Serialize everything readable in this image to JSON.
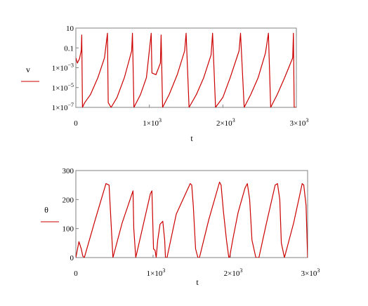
{
  "chart_data": [
    {
      "type": "line",
      "ylabel": "v",
      "xlabel": "t",
      "yscale": "log",
      "xlim": [
        0,
        3000
      ],
      "ylim": [
        1e-07,
        10
      ],
      "xticks": [
        {
          "value": 0,
          "base": "0",
          "exp": ""
        },
        {
          "value": 1000,
          "base": "1×10",
          "exp": "3"
        },
        {
          "value": 2000,
          "base": "2×10",
          "exp": "3"
        },
        {
          "value": 3000,
          "base": "3×10",
          "exp": "3"
        }
      ],
      "yticks": [
        {
          "value": 10,
          "base": "10",
          "exp": ""
        },
        {
          "value": 0.1,
          "base": "0.1",
          "exp": ""
        },
        {
          "value": 0.001,
          "base": "1×10",
          "exp": "−3"
        },
        {
          "value": 1e-05,
          "base": "1×10",
          "exp": "−5"
        },
        {
          "value": 1e-07,
          "base": "1×10",
          "exp": "−7"
        }
      ],
      "color": "#cc0000",
      "series": [
        {
          "x": [
            0,
            20,
            50,
            75,
            80,
            90,
            120,
            200,
            300,
            390,
            430,
            440,
            480,
            560,
            660,
            760,
            770,
            790,
            880,
            960,
            1025,
            1035,
            1090,
            1150,
            1160,
            1180,
            1270,
            1380,
            1480,
            1500,
            1540,
            1640,
            1740,
            1840,
            1860,
            1900,
            2000,
            2100,
            2220,
            2240,
            2290,
            2380,
            2480,
            2580,
            2620,
            2650,
            2740,
            2840,
            2950,
            2960,
            2970,
            3000
          ],
          "y": [
            0.01,
            0.003,
            0.008,
            0.06,
            2,
            1e-07,
            3e-07,
            2e-06,
            0.0001,
            0.01,
            3,
            3e-07,
            1e-07,
            1e-06,
            0.0001,
            0.05,
            3,
            1e-07,
            2e-06,
            0.0001,
            3,
            0.0003,
            0.0002,
            0.003,
            2,
            1e-07,
            2e-06,
            0.0002,
            0.05,
            3,
            1e-07,
            2e-06,
            0.0001,
            0.02,
            3,
            1e-07,
            1e-06,
            0.0001,
            0.05,
            3,
            1e-07,
            2e-06,
            0.0001,
            0.03,
            3,
            1e-07,
            2e-06,
            0.0001,
            0.01,
            3,
            1e-07,
            1e-07
          ]
        }
      ]
    },
    {
      "type": "line",
      "ylabel": "θ",
      "xlabel": "t",
      "xlim": [
        0,
        3000
      ],
      "ylim": [
        0,
        300
      ],
      "xticks": [
        {
          "value": 0,
          "base": "0",
          "exp": ""
        },
        {
          "value": 1000,
          "base": "1×10",
          "exp": "3"
        },
        {
          "value": 2000,
          "base": "2×10",
          "exp": "3"
        },
        {
          "value": 3000,
          "base": "3×10",
          "exp": "3"
        }
      ],
      "yticks": [
        {
          "value": 0,
          "base": "0",
          "exp": ""
        },
        {
          "value": 100,
          "base": "100",
          "exp": ""
        },
        {
          "value": 200,
          "base": "200",
          "exp": ""
        },
        {
          "value": 300,
          "base": "300",
          "exp": ""
        }
      ],
      "color": "#cc0000",
      "series": [
        {
          "x": [
            0,
            40,
            70,
            90,
            110,
            250,
            390,
            430,
            460,
            480,
            600,
            740,
            750,
            775,
            870,
            965,
            985,
            1005,
            1025,
            1040,
            1060,
            1090,
            1125,
            1150,
            1160,
            1180,
            1300,
            1480,
            1500,
            1520,
            1550,
            1580,
            1600,
            1720,
            1860,
            1880,
            1910,
            1950,
            1980,
            1990,
            2030,
            2100,
            2190,
            2220,
            2250,
            2280,
            2330,
            2370,
            2460,
            2580,
            2610,
            2640,
            2660,
            2700,
            2820,
            2930,
            2950,
            2980,
            3000,
            3010
          ],
          "y": [
            0,
            55,
            30,
            5,
            0,
            130,
            255,
            250,
            100,
            0,
            120,
            230,
            100,
            0,
            110,
            220,
            230,
            30,
            25,
            0,
            60,
            115,
            125,
            60,
            0,
            0,
            150,
            255,
            250,
            180,
            30,
            0,
            0,
            130,
            260,
            250,
            160,
            60,
            0,
            0,
            60,
            155,
            240,
            255,
            200,
            60,
            0,
            0,
            110,
            250,
            255,
            200,
            50,
            0,
            120,
            255,
            250,
            180,
            0,
            35
          ]
        }
      ]
    }
  ]
}
